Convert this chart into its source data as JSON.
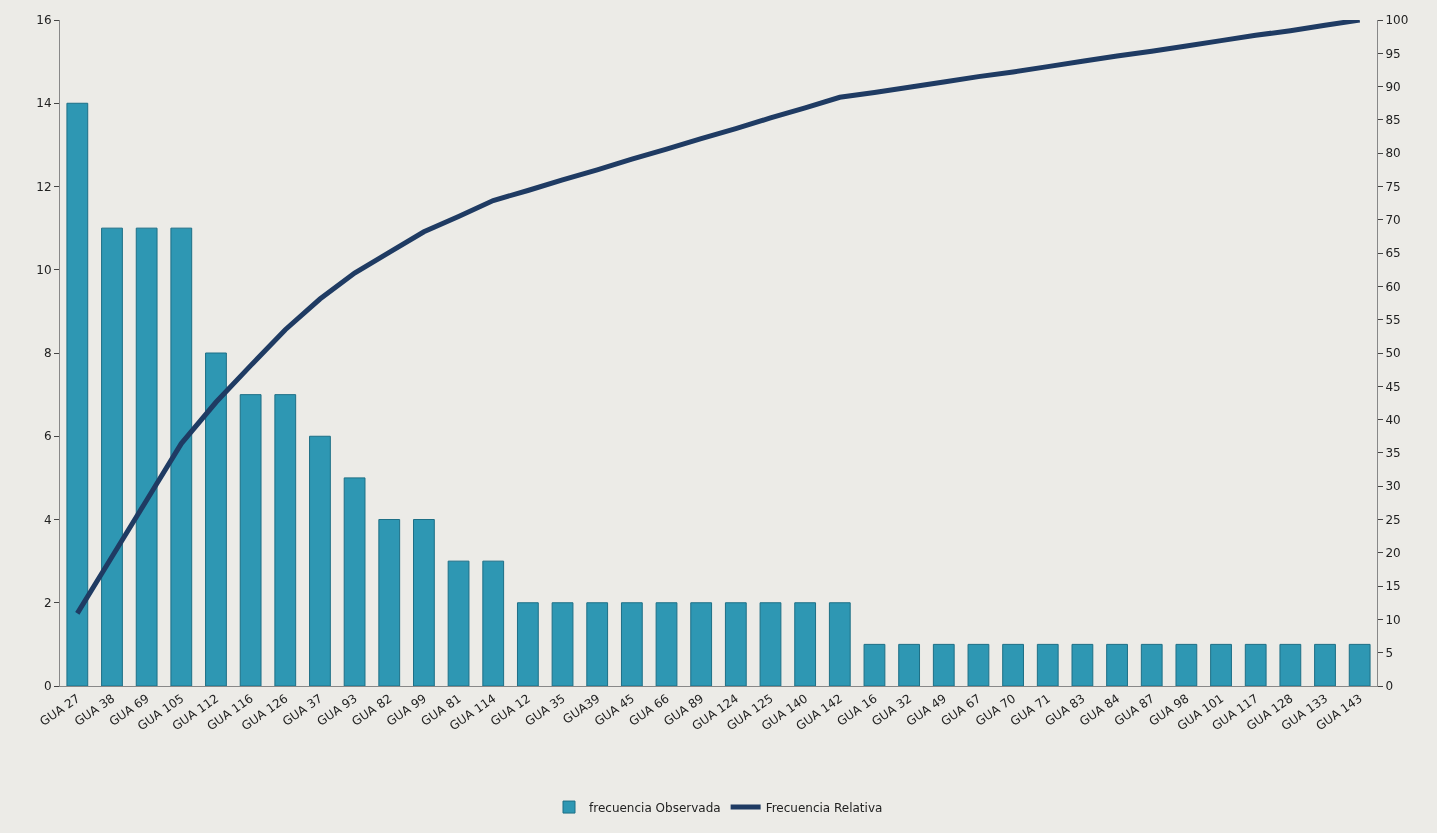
{
  "chart_data": {
    "type": "bar",
    "categories": [
      "GUA 27",
      "GUA 38",
      "GUA 69",
      "GUA 105",
      "GUA 112",
      "GUA 116",
      "GUA 126",
      "GUA 37",
      "GUA 93",
      "GUA 82",
      "GUA 99",
      "GUA 81",
      "GUA 114",
      "GUA 12",
      "GUA 35",
      "GUA39",
      "GUA 45",
      "GUA 66",
      "GUA 89",
      "GUA 124",
      "GUA 125",
      "GUA 140",
      "GUA 142",
      "GUA 16",
      "GUA 32",
      "GUA 49",
      "GUA 67",
      "GUA 70",
      "GUA 71",
      "GUA 83",
      "GUA 84",
      "GUA 87",
      "GUA 98",
      "GUA 101",
      "GUA 117",
      "GUA 128",
      "GUA 133",
      "GUA 143"
    ],
    "series": [
      {
        "name": "frecuencia Observada",
        "color": "#2e97b3",
        "values": [
          14,
          11,
          11,
          11,
          8,
          7,
          7,
          6,
          5,
          4,
          4,
          3,
          3,
          2,
          2,
          2,
          2,
          2,
          2,
          2,
          2,
          2,
          2,
          1,
          1,
          1,
          1,
          1,
          1,
          1,
          1,
          1,
          1,
          1,
          1,
          1,
          1,
          1
        ]
      },
      {
        "name": "Frecuencia Relativa",
        "type": "line",
        "axis": "y2",
        "color": "#1f3b63",
        "values": [
          10.9,
          19.4,
          27.9,
          36.4,
          42.6,
          48.1,
          53.5,
          58.1,
          62.0,
          65.1,
          68.2,
          70.5,
          72.9,
          74.4,
          76.0,
          77.5,
          79.1,
          80.6,
          82.2,
          83.7,
          85.3,
          86.8,
          88.4,
          89.1,
          89.9,
          90.7,
          91.5,
          92.2,
          93.0,
          93.8,
          94.6,
          95.3,
          96.1,
          96.9,
          97.7,
          98.4,
          99.2,
          100
        ]
      }
    ],
    "ylim": [
      0,
      16
    ],
    "yticks": [
      0,
      2,
      4,
      6,
      8,
      10,
      12,
      14,
      16
    ],
    "y2lim": [
      0,
      100
    ],
    "y2ticks": [
      0,
      5,
      10,
      15,
      20,
      25,
      30,
      35,
      40,
      45,
      50,
      55,
      60,
      65,
      70,
      75,
      80,
      85,
      90,
      95,
      100
    ],
    "grid": false,
    "legend": "bottom",
    "marker": "none",
    "line_style": "solid"
  }
}
